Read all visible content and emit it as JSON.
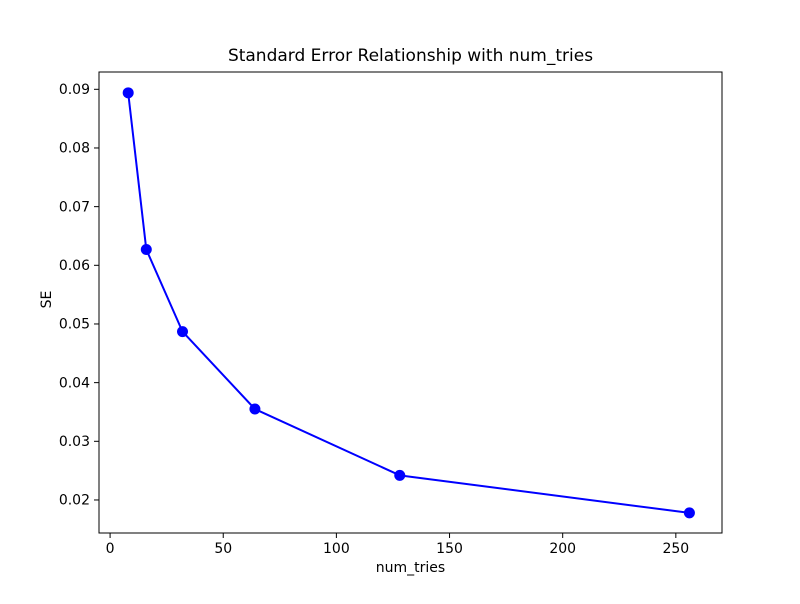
{
  "figure": {
    "background": "#ffffff"
  },
  "chart_data": {
    "type": "line",
    "title": "Standard Error Relationship with num_tries",
    "xlabel": "num_tries",
    "ylabel": "SE",
    "x": [
      8,
      16,
      32,
      64,
      128,
      256
    ],
    "y": [
      0.0894,
      0.0627,
      0.0487,
      0.0355,
      0.0242,
      0.0178
    ],
    "line_color": "#0000ff",
    "marker": "circle",
    "marker_color": "#0000ff",
    "marker_radius": 5.5,
    "line_width": 2,
    "xticks": [
      0,
      50,
      100,
      150,
      200,
      250
    ],
    "yticks": [
      0.02,
      0.03,
      0.04,
      0.05,
      0.06,
      0.07,
      0.08,
      0.09
    ],
    "ytick_decimals": 2,
    "xlim": [
      -4.9,
      270.4
    ],
    "ylim": [
      0.01437,
      0.09295
    ],
    "grid": false,
    "legend": null,
    "axis_color": "#000000"
  }
}
